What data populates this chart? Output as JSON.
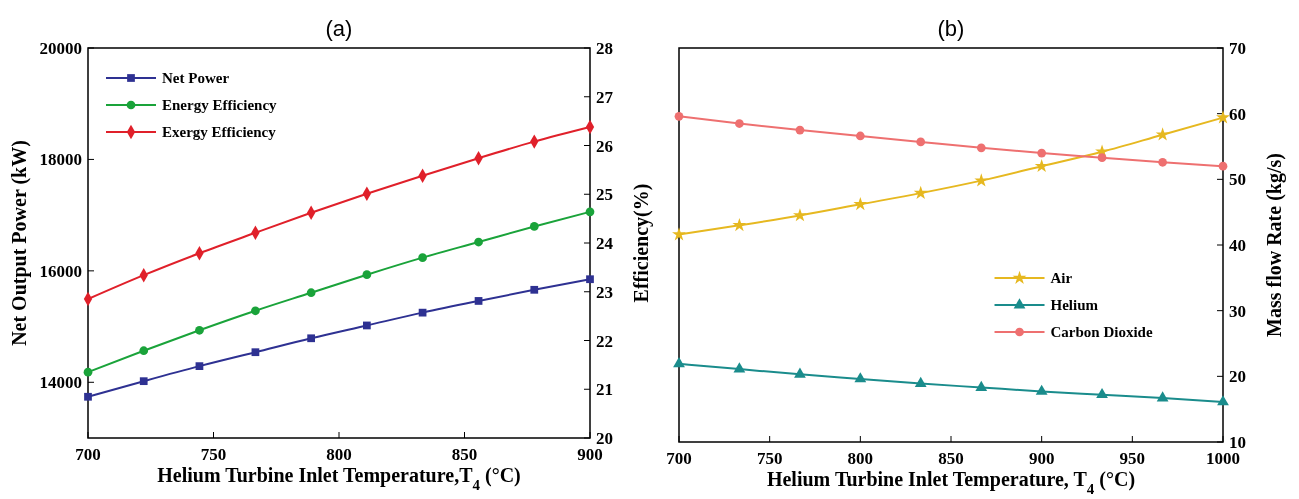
{
  "chart_data": [
    {
      "type": "line",
      "title": "(a)",
      "xlabel": "Helium Turbine Inlet Temperature,T$_{4}$ (°C)",
      "ylabel": "Net Output Power (kW)",
      "y2label": "Efficiency(%)",
      "x": [
        700,
        722.2,
        744.4,
        766.7,
        788.9,
        811.1,
        833.3,
        855.6,
        877.8,
        900
      ],
      "xlim": [
        700,
        900
      ],
      "xticks": [
        700,
        750,
        800,
        850,
        900
      ],
      "ylim": [
        13000,
        20000
      ],
      "yticks": [
        14000,
        16000,
        18000,
        20000
      ],
      "y2lim": [
        20,
        28
      ],
      "y2ticks": [
        20,
        21,
        22,
        23,
        24,
        25,
        26,
        27,
        28
      ],
      "legend": "top left",
      "grid": false,
      "line_style": "solid",
      "series": [
        {
          "name": "Net Power",
          "color": "#2e3192",
          "marker": "square",
          "values": [
            13740,
            14020,
            14290,
            14540,
            14790,
            15020,
            15250,
            15460,
            15660,
            15850
          ]
        },
        {
          "name": "Energy Efficiency",
          "color": "#1aa33a",
          "marker": "circle",
          "axis": "y2",
          "values": [
            21.35,
            21.79,
            22.21,
            22.61,
            22.98,
            23.35,
            23.7,
            24.02,
            24.34,
            24.64
          ]
        },
        {
          "name": "Exergy Efficiency",
          "color": "#e0202a",
          "marker": "diamond",
          "axis": "y2",
          "values": [
            22.85,
            23.34,
            23.79,
            24.21,
            24.62,
            25.01,
            25.38,
            25.74,
            26.08,
            26.38
          ]
        }
      ]
    },
    {
      "type": "line",
      "title": "(b)",
      "xlabel": "Helium Turbine Inlet Temperature, T$_{4}$ (°C)",
      "y2label": "Mass flow Rate (kg/s)",
      "x": [
        700,
        733.3,
        766.7,
        800,
        833.3,
        866.7,
        900,
        933.3,
        966.7,
        1000
      ],
      "xlim": [
        700,
        1000
      ],
      "xticks": [
        700,
        750,
        800,
        850,
        900,
        950,
        1000
      ],
      "y2lim": [
        10,
        70
      ],
      "y2ticks": [
        10,
        20,
        30,
        40,
        50,
        60,
        70
      ],
      "legend": "right",
      "grid": false,
      "line_style": "solid",
      "series": [
        {
          "name": "Air",
          "color": "#e6b820",
          "marker": "star",
          "axis": "y2",
          "values": [
            41.6,
            43.0,
            44.5,
            46.2,
            47.9,
            49.8,
            52.0,
            54.2,
            56.8,
            59.4
          ]
        },
        {
          "name": "Helium",
          "color": "#1a8c8c",
          "marker": "triangle",
          "axis": "y2",
          "values": [
            21.9,
            21.1,
            20.3,
            19.6,
            18.9,
            18.3,
            17.7,
            17.2,
            16.7,
            16.1
          ]
        },
        {
          "name": "Carbon Dioxide",
          "color": "#ee7070",
          "marker": "circle",
          "axis": "y2",
          "values": [
            59.6,
            58.5,
            57.5,
            56.6,
            55.7,
            54.8,
            54.0,
            53.3,
            52.6,
            52.0
          ]
        }
      ]
    }
  ]
}
